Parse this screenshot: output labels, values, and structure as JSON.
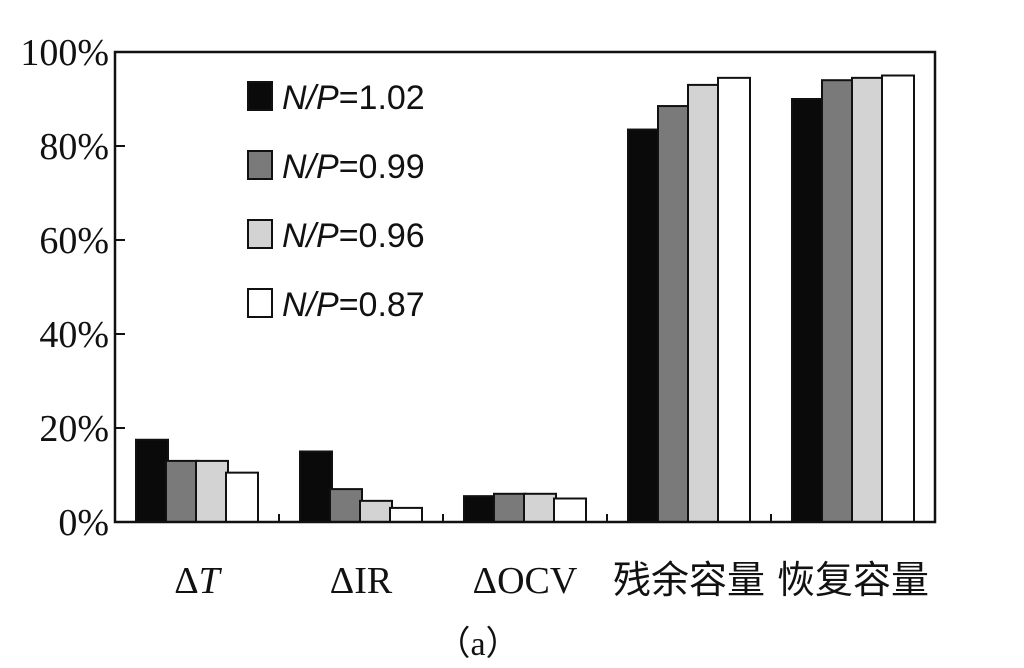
{
  "chart_data": {
    "type": "bar",
    "categories": [
      "ΔT",
      "ΔIR",
      "ΔOCV",
      "残余容量",
      "恢复容量"
    ],
    "series": [
      {
        "name": "N/P=1.02",
        "color": "#0a0a0a",
        "values": [
          17.5,
          15,
          5.5,
          83.5,
          90
        ]
      },
      {
        "name": "N/P=0.99",
        "color": "#7a7a7a",
        "values": [
          13,
          7,
          6,
          88.5,
          94
        ]
      },
      {
        "name": "N/P=0.96",
        "color": "#d3d3d3",
        "values": [
          13,
          4.5,
          6,
          93,
          94.5
        ]
      },
      {
        "name": "N/P=0.87",
        "color": "#ffffff",
        "values": [
          10.5,
          3,
          5,
          94.5,
          95
        ]
      }
    ],
    "legend_parts": [
      {
        "prefix": "N/P",
        "suffix": "=1.02"
      },
      {
        "prefix": "N/P",
        "suffix": "=0.99"
      },
      {
        "prefix": "N/P",
        "suffix": "=0.96"
      },
      {
        "prefix": "N/P",
        "suffix": "=0.87"
      }
    ],
    "category_labels": [
      {
        "delta": "Δ",
        "rest": "T",
        "italic": true
      },
      {
        "delta": "Δ",
        "rest": "IR",
        "italic": false
      },
      {
        "delta": "Δ",
        "rest": "OCV",
        "italic": false
      },
      {
        "delta": "",
        "rest": "残余容量",
        "italic": false
      },
      {
        "delta": "",
        "rest": "恢复容量",
        "italic": false
      }
    ],
    "yticks": [
      "0%",
      "20%",
      "40%",
      "60%",
      "80%",
      "100%"
    ],
    "ylim": [
      0,
      100
    ],
    "grid": false,
    "legend_position": "top-left",
    "caption": "（a）"
  }
}
